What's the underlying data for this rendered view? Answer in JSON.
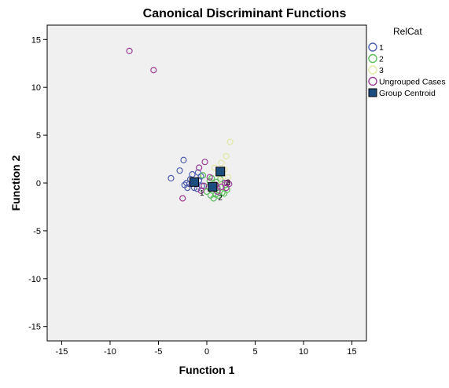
{
  "chart_data": {
    "type": "scatter",
    "title": "Canonical Discriminant Functions",
    "xlabel": "Function 1",
    "ylabel": "Function 2",
    "xlim": [
      -16.5,
      16.5
    ],
    "ylim": [
      -16.5,
      16.5
    ],
    "xticks": [
      -15,
      -10,
      -5,
      0,
      5,
      10,
      15
    ],
    "yticks": [
      -15,
      -10,
      -5,
      0,
      5,
      10,
      15
    ],
    "grid": false,
    "legend_title": "RelCat",
    "legend_position": "top-right, outside plot",
    "series": [
      {
        "name": "1",
        "marker": "open-circle",
        "color": "#4f5fb0",
        "points": [
          [
            -2.4,
            2.4
          ],
          [
            -2.8,
            1.3
          ],
          [
            -3.7,
            0.5
          ],
          [
            -2.3,
            -0.2
          ],
          [
            -2.0,
            -0.5
          ],
          [
            -1.8,
            -0.1
          ],
          [
            -1.5,
            0.9
          ],
          [
            -1.2,
            0.1
          ],
          [
            -1.0,
            -0.6
          ],
          [
            -0.8,
            0.3
          ],
          [
            -0.5,
            -0.3
          ],
          [
            -1.7,
            0.4
          ],
          [
            -0.6,
            0.7
          ],
          [
            -1.3,
            -0.5
          ],
          [
            -2.1,
            0.0
          ],
          [
            -0.9,
            1.1
          ]
        ]
      },
      {
        "name": "2",
        "marker": "open-circle",
        "color": "#5dbd5f",
        "points": [
          [
            -0.4,
            0.8
          ],
          [
            0.3,
            0.2
          ],
          [
            0.6,
            -0.8
          ],
          [
            0.9,
            -1.2
          ],
          [
            0.7,
            -1.6
          ],
          [
            1.1,
            -0.5
          ],
          [
            1.4,
            0.4
          ],
          [
            1.6,
            -1.0
          ],
          [
            1.9,
            -0.2
          ],
          [
            0.2,
            -0.4
          ],
          [
            0.5,
            0.5
          ],
          [
            1.2,
            -1.3
          ],
          [
            0.0,
            -0.9
          ],
          [
            2.1,
            -0.7
          ],
          [
            0.4,
            -1.3
          ],
          [
            1.0,
            0.1
          ],
          [
            1.8,
            -1.1
          ]
        ]
      },
      {
        "name": "3",
        "marker": "open-circle",
        "color": "#e3e7a8",
        "points": [
          [
            2.4,
            4.3
          ],
          [
            2.0,
            2.8
          ],
          [
            1.5,
            2.1
          ],
          [
            1.2,
            0.9
          ],
          [
            1.8,
            1.4
          ],
          [
            2.2,
            0.6
          ],
          [
            0.8,
            1.6
          ],
          [
            1.6,
            0.2
          ]
        ]
      },
      {
        "name": "Ungrouped Cases",
        "marker": "open-circle",
        "color": "#9c3d98",
        "points": [
          [
            -8.0,
            13.8
          ],
          [
            -5.5,
            11.8
          ],
          [
            -0.2,
            2.2
          ],
          [
            -0.8,
            1.6
          ],
          [
            -2.5,
            -1.6
          ],
          [
            -1.1,
            -0.1
          ],
          [
            -0.6,
            -0.8
          ],
          [
            0.3,
            0.6
          ],
          [
            1.1,
            -0.9
          ],
          [
            2.3,
            -0.1
          ],
          [
            1.9,
            0.0
          ],
          [
            1.5,
            -0.4
          ],
          [
            2.0,
            -0.5
          ],
          [
            0.9,
            -0.2
          ],
          [
            -0.3,
            -0.3
          ],
          [
            2.1,
            0.0
          ]
        ]
      }
    ],
    "centroids": {
      "name": "Group Centroid",
      "marker": "filled-square",
      "color": "#1b4d7e",
      "points": [
        {
          "label": "1",
          "x": -1.3,
          "y": 0.1
        },
        {
          "label": "2",
          "x": 0.6,
          "y": -0.4
        },
        {
          "label": "3",
          "x": 1.4,
          "y": 1.2
        }
      ]
    }
  }
}
